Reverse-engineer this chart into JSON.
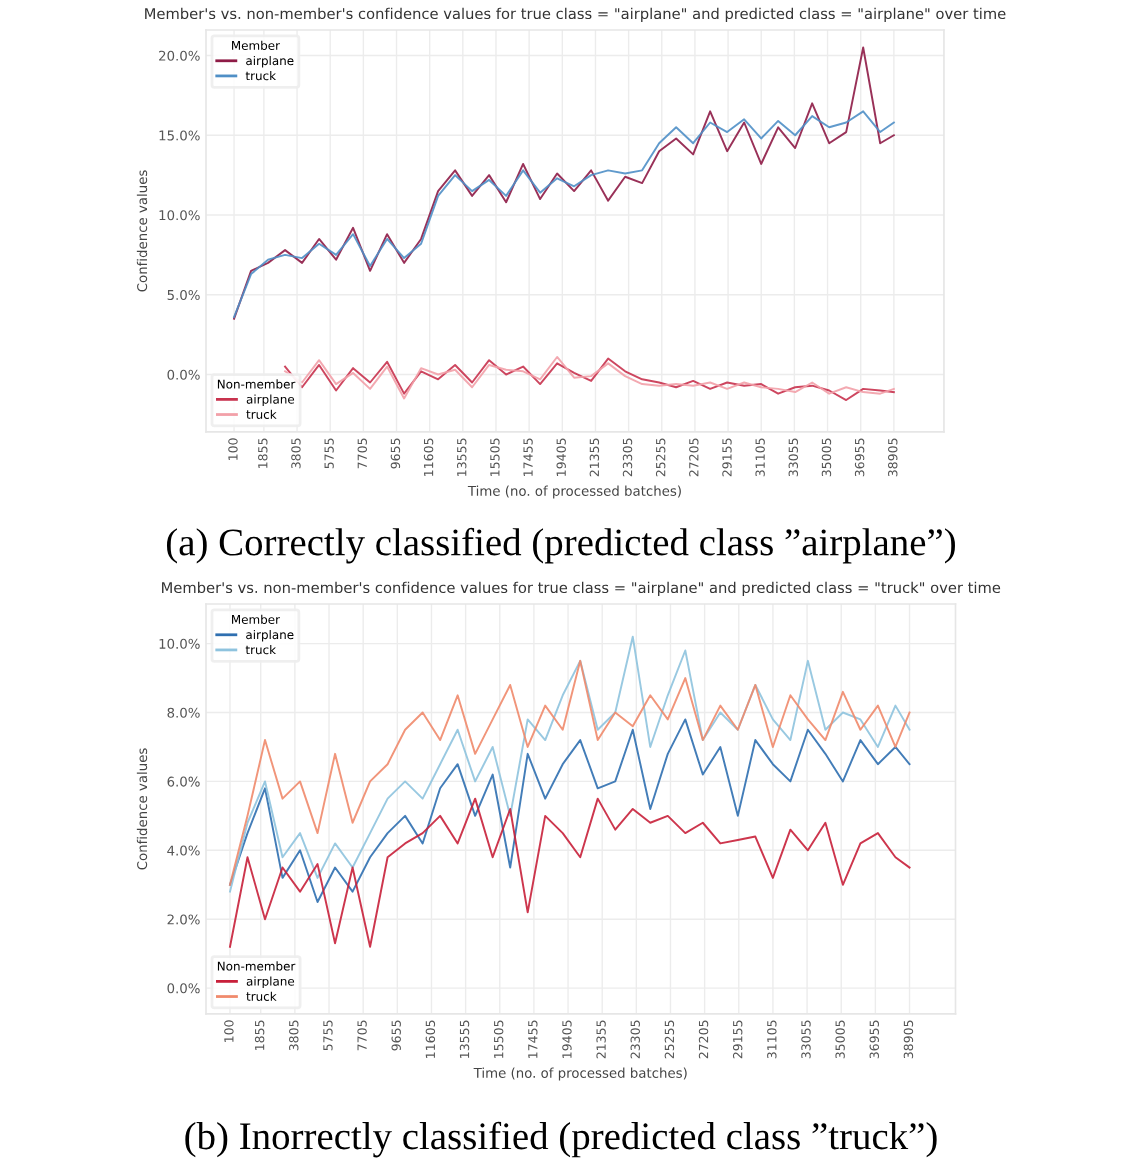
{
  "chart_data": [
    {
      "type": "line",
      "title": "Member's vs. non-member's confidence values for true class = \"airplane\" and predicted class = \"airplane\" over time",
      "xlabel": "Time (no. of processed batches)",
      "ylabel": "Confidence values",
      "annotations": [
        "(a) Correctly classified (predicted class ”airplane”)"
      ],
      "x": [
        100,
        1100,
        2100,
        3100,
        4100,
        5100,
        6100,
        7100,
        8100,
        9100,
        10100,
        11100,
        12100,
        13100,
        14100,
        15100,
        16100,
        17100,
        18100,
        19100,
        20100,
        21100,
        22100,
        23100,
        24100,
        25100,
        26100,
        27100,
        28100,
        29100,
        30100,
        31100,
        32100,
        33100,
        34100,
        35100,
        36100,
        37100,
        38100,
        38905
      ],
      "xlim": [
        -1550,
        41850
      ],
      "xticks": [
        100,
        1855,
        3805,
        5755,
        7705,
        9655,
        11605,
        13555,
        15505,
        17455,
        19405,
        21355,
        23305,
        25255,
        27205,
        29155,
        31105,
        33055,
        35005,
        36955,
        38905
      ],
      "ylim": [
        -3.6,
        21.6
      ],
      "yticks": [
        {
          "value": 0,
          "label": "0.0%"
        },
        {
          "value": 5,
          "label": "5.0%"
        },
        {
          "value": 10,
          "label": "10.0%"
        },
        {
          "value": 15,
          "label": "15.0%"
        },
        {
          "value": 20,
          "label": "20.0%"
        }
      ],
      "grid": true,
      "legend": [
        "top left",
        "bottom left"
      ],
      "legend_title": [
        "Member",
        "Non-member"
      ],
      "series": [
        {
          "name": "airplane",
          "color": "#8e1b46",
          "values": [
            3.5,
            6.5,
            7.0,
            7.8,
            7.0,
            8.5,
            7.2,
            9.2,
            6.5,
            8.8,
            7.0,
            8.5,
            11.5,
            12.8,
            11.2,
            12.5,
            10.8,
            13.2,
            11.0,
            12.6,
            11.5,
            12.8,
            10.9,
            12.4,
            12.0,
            14.0,
            14.8,
            13.8,
            16.5,
            14.0,
            15.8,
            13.2,
            15.5,
            14.2,
            17.0,
            14.5,
            15.2,
            20.5,
            14.5,
            15.0
          ]
        },
        {
          "name": "truck",
          "color": "#4f8fc6",
          "values": [
            3.6,
            6.3,
            7.2,
            7.5,
            7.3,
            8.2,
            7.5,
            8.8,
            6.8,
            8.5,
            7.3,
            8.2,
            11.2,
            12.5,
            11.5,
            12.2,
            11.2,
            12.8,
            11.4,
            12.3,
            11.8,
            12.5,
            12.8,
            12.6,
            12.8,
            14.5,
            15.5,
            14.5,
            15.8,
            15.2,
            16.0,
            14.8,
            15.9,
            15.0,
            16.2,
            15.5,
            15.8,
            16.5,
            15.2,
            15.8
          ]
        },
        {
          "name": "airplane",
          "color": "#c8324e",
          "values": [
            null,
            null,
            null,
            0.5,
            -0.8,
            0.6,
            -1.0,
            0.4,
            -0.5,
            0.8,
            -1.2,
            0.2,
            -0.3,
            0.6,
            -0.5,
            0.9,
            0.0,
            0.5,
            -0.6,
            0.7,
            0.1,
            -0.4,
            1.0,
            0.2,
            -0.3,
            -0.5,
            -0.8,
            -0.4,
            -0.9,
            -0.5,
            -0.7,
            -0.6,
            -1.2,
            -0.8,
            -0.7,
            -1.0,
            -1.6,
            -0.9,
            -1.0,
            -1.1
          ]
        },
        {
          "name": "truck",
          "color": "#f2a0a8",
          "values": [
            null,
            null,
            null,
            0.2,
            -0.5,
            0.9,
            -0.6,
            0.1,
            -0.9,
            0.5,
            -1.5,
            0.4,
            0.0,
            0.3,
            -0.8,
            0.6,
            0.3,
            0.2,
            -0.3,
            1.1,
            -0.2,
            -0.1,
            0.7,
            -0.1,
            -0.6,
            -0.7,
            -0.6,
            -0.7,
            -0.5,
            -0.9,
            -0.5,
            -0.8,
            -0.9,
            -1.1,
            -0.5,
            -1.2,
            -0.8,
            -1.1,
            -1.2,
            -0.9
          ]
        }
      ]
    },
    {
      "type": "line",
      "title": "Member's vs. non-member's confidence values for true class = \"airplane\" and predicted class = \"truck\" over time",
      "xlabel": "Time (no. of processed batches)",
      "ylabel": "Confidence values",
      "annotations": [
        "(b) Inorrectly classified (predicted class ”truck”)"
      ],
      "x": [
        100,
        1100,
        2100,
        3100,
        4100,
        5100,
        6100,
        7100,
        8100,
        9100,
        10100,
        11100,
        12100,
        13100,
        14100,
        15100,
        16100,
        17100,
        18100,
        19100,
        20100,
        21100,
        22100,
        23100,
        24100,
        25100,
        26100,
        27100,
        28100,
        29100,
        30100,
        31100,
        32100,
        33100,
        34100,
        35100,
        36100,
        37100,
        38100,
        38905
      ],
      "xlim": [
        -1270,
        41530
      ],
      "xticks": [
        100,
        1855,
        3805,
        5755,
        7705,
        9655,
        11605,
        13555,
        15505,
        17455,
        19405,
        21355,
        23305,
        25255,
        27205,
        29155,
        31105,
        33055,
        35005,
        36955,
        38905
      ],
      "ylim": [
        -0.75,
        11.15
      ],
      "yticks": [
        {
          "value": 0,
          "label": "0.0%"
        },
        {
          "value": 2,
          "label": "2.0%"
        },
        {
          "value": 4,
          "label": "4.0%"
        },
        {
          "value": 6,
          "label": "6.0%"
        },
        {
          "value": 8,
          "label": "8.0%"
        },
        {
          "value": 10,
          "label": "10.0%"
        }
      ],
      "grid": true,
      "legend": [
        "top left",
        "bottom left"
      ],
      "legend_title": [
        "Member",
        "Non-member"
      ],
      "series": [
        {
          "name": "airplane",
          "color": "#2f6fb0",
          "values": [
            3.0,
            4.5,
            5.8,
            3.2,
            4.0,
            2.5,
            3.5,
            2.8,
            3.8,
            4.5,
            5.0,
            4.2,
            5.8,
            6.5,
            5.0,
            6.2,
            3.5,
            6.8,
            5.5,
            6.5,
            7.2,
            5.8,
            6.0,
            7.5,
            5.2,
            6.8,
            7.8,
            6.2,
            7.0,
            5.0,
            7.2,
            6.5,
            6.0,
            7.5,
            6.8,
            6.0,
            7.2,
            6.5,
            7.0,
            6.5
          ]
        },
        {
          "name": "truck",
          "color": "#8ec3de",
          "values": [
            2.8,
            4.8,
            6.0,
            3.8,
            4.5,
            3.2,
            4.2,
            3.5,
            4.5,
            5.5,
            6.0,
            5.5,
            6.5,
            7.5,
            6.0,
            7.0,
            5.0,
            7.8,
            7.2,
            8.5,
            9.5,
            7.5,
            8.0,
            10.2,
            7.0,
            8.5,
            9.8,
            7.2,
            8.0,
            7.5,
            8.8,
            7.8,
            7.2,
            9.5,
            7.5,
            8.0,
            7.8,
            7.0,
            8.2,
            7.5
          ]
        },
        {
          "name": "airplane",
          "color": "#c8203a",
          "values": [
            1.2,
            3.8,
            2.0,
            3.5,
            2.8,
            3.6,
            1.3,
            3.5,
            1.2,
            3.8,
            4.2,
            4.5,
            5.0,
            4.2,
            5.5,
            3.8,
            5.2,
            2.2,
            5.0,
            4.5,
            3.8,
            5.5,
            4.6,
            5.2,
            4.8,
            5.0,
            4.5,
            4.8,
            4.2,
            4.3,
            4.4,
            3.2,
            4.6,
            4.0,
            4.8,
            3.0,
            4.2,
            4.5,
            3.8,
            3.5
          ]
        },
        {
          "name": "truck",
          "color": "#f08a6c",
          "values": [
            3.0,
            5.0,
            7.2,
            5.5,
            6.0,
            4.5,
            6.8,
            4.8,
            6.0,
            6.5,
            7.5,
            8.0,
            7.2,
            8.5,
            6.8,
            7.8,
            8.8,
            7.0,
            8.2,
            7.5,
            9.5,
            7.2,
            8.0,
            7.6,
            8.5,
            7.8,
            9.0,
            7.2,
            8.2,
            7.5,
            8.8,
            7.0,
            8.5,
            7.8,
            7.2,
            8.6,
            7.5,
            8.2,
            7.0,
            8.0
          ]
        }
      ]
    }
  ]
}
